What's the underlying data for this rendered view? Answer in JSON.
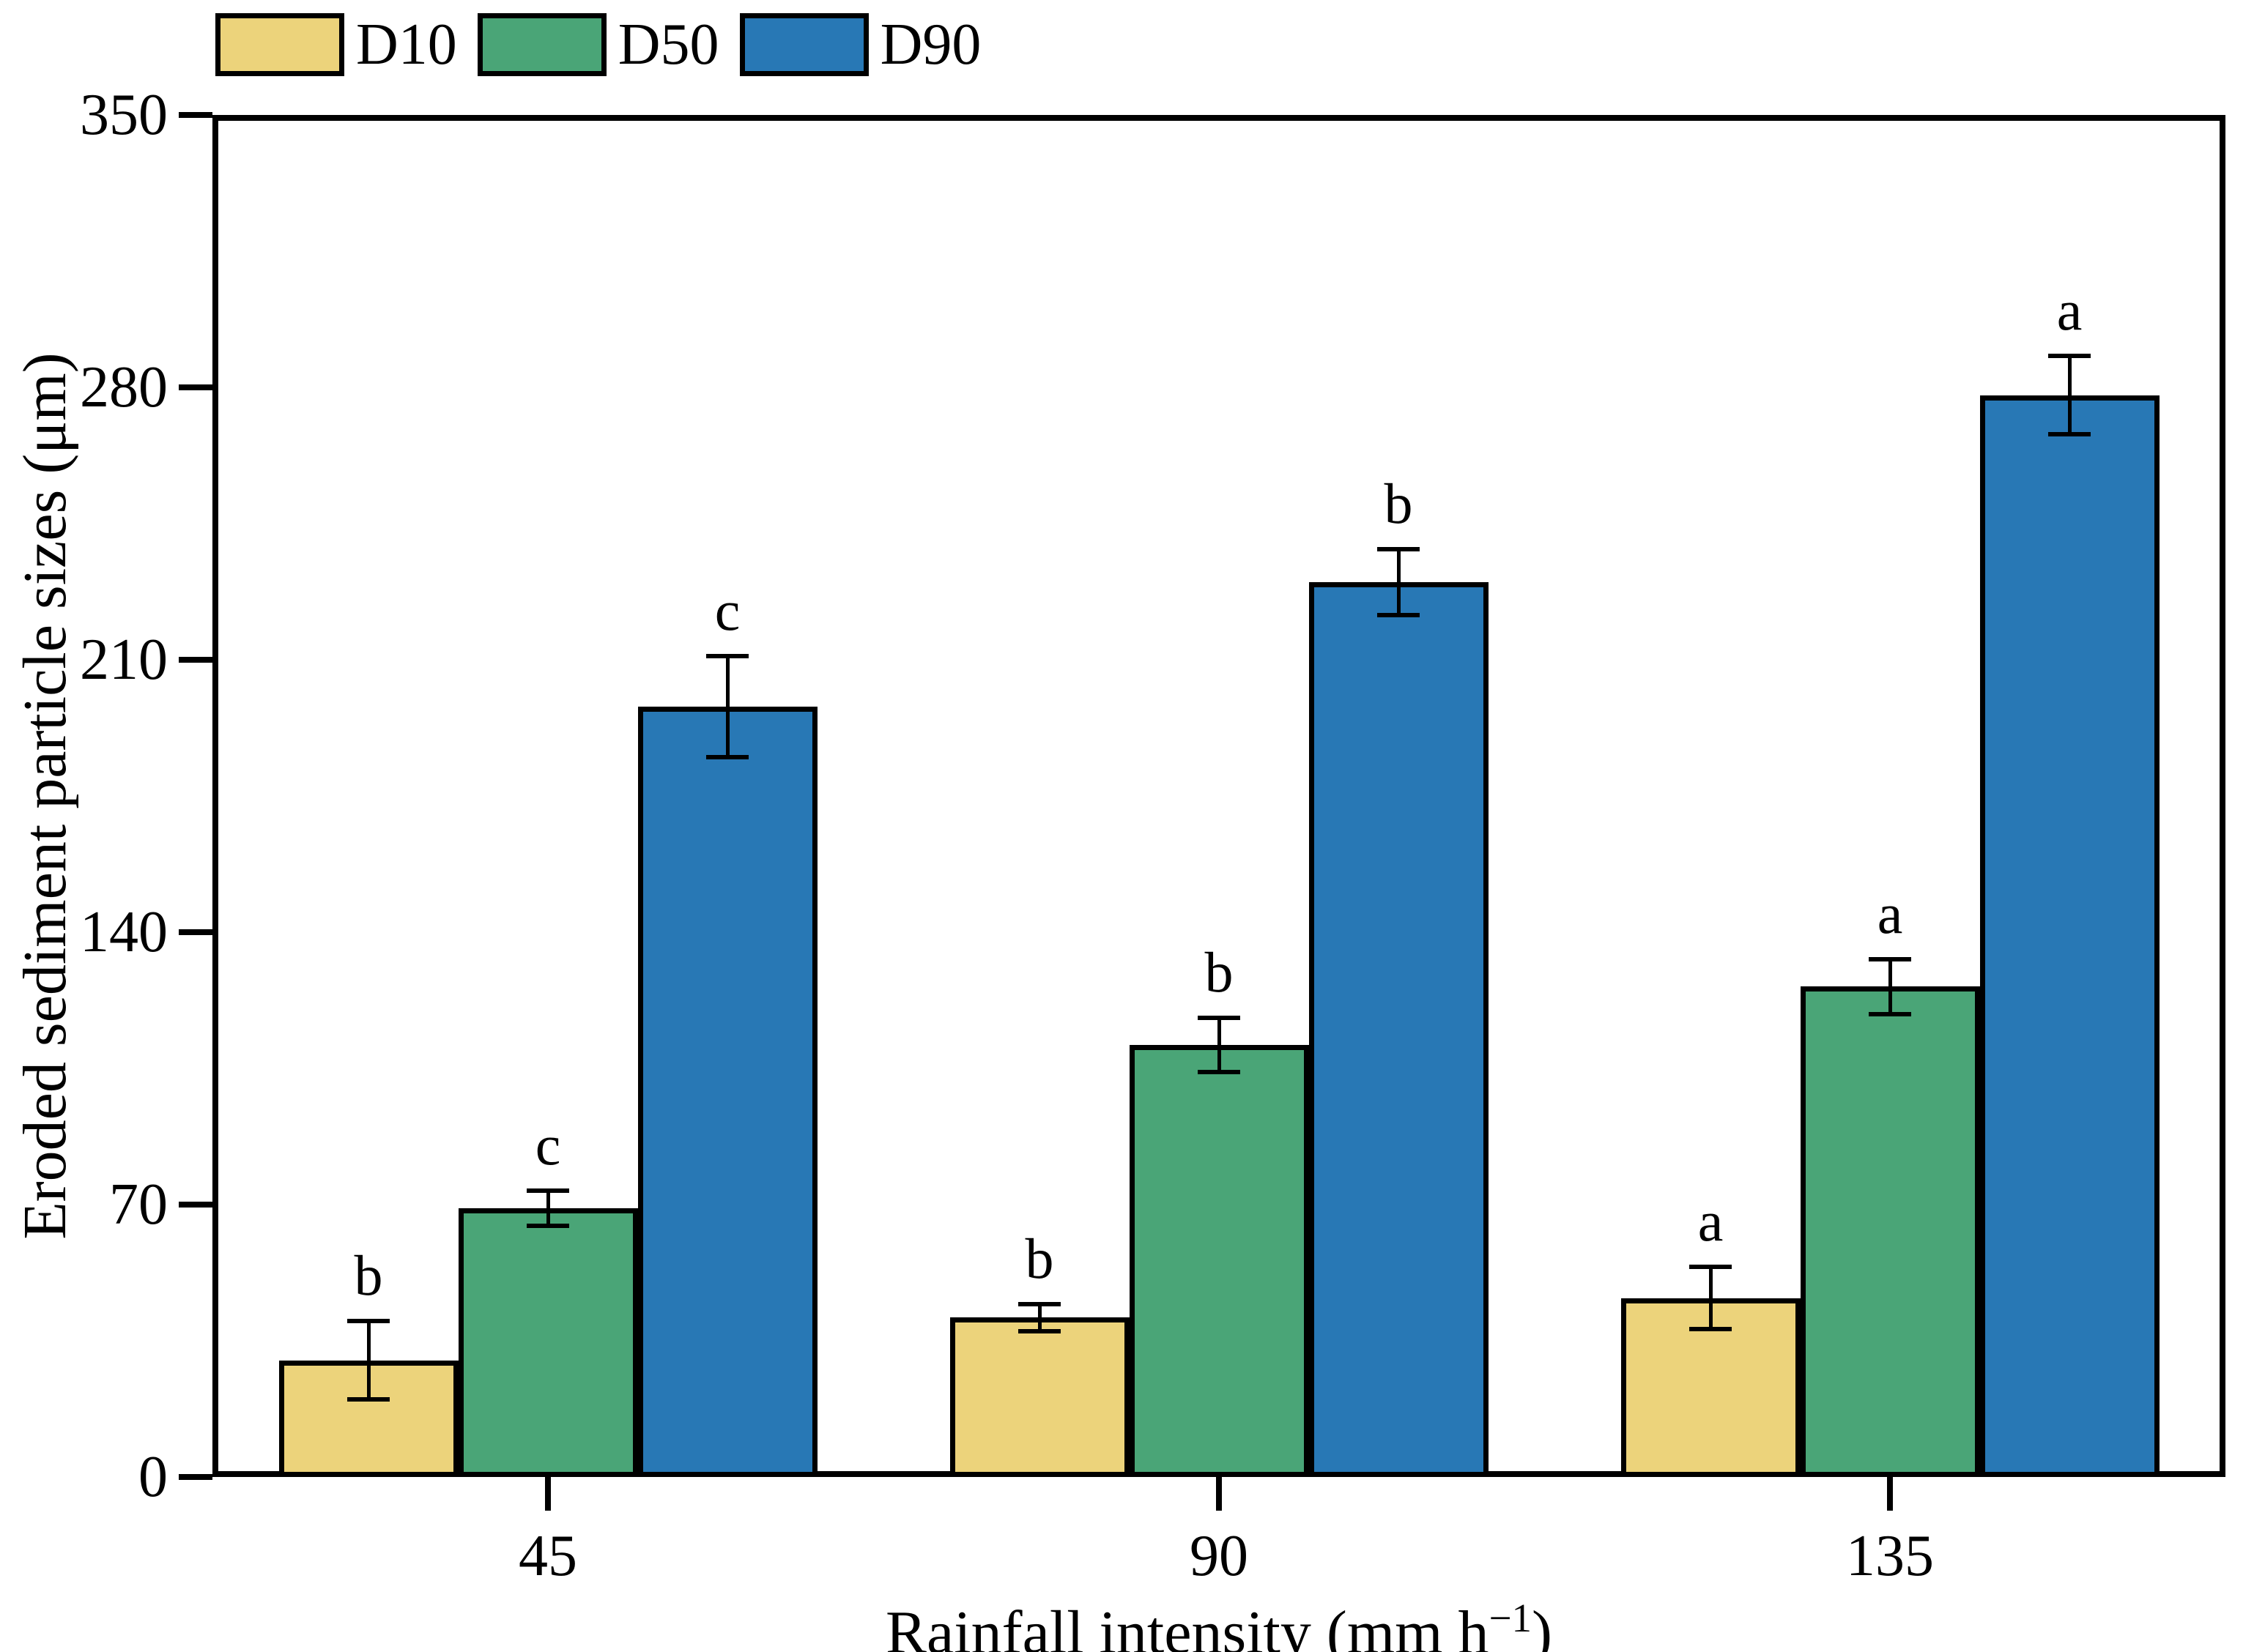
{
  "chart_data": {
    "type": "bar",
    "title": "",
    "categories": [
      "45",
      "90",
      "135"
    ],
    "series": [
      {
        "name": "D10",
        "color": "#ecd37b",
        "values": [
          30,
          41,
          46
        ],
        "errors": [
          10,
          3.5,
          8
        ],
        "letters": [
          "b",
          "b",
          "a"
        ]
      },
      {
        "name": "D50",
        "color": "#4aa577",
        "values": [
          69,
          111,
          126
        ],
        "errors": [
          4.5,
          7,
          7
        ],
        "letters": [
          "c",
          "b",
          "a"
        ]
      },
      {
        "name": "D90",
        "color": "#2878b5",
        "values": [
          198,
          230,
          278
        ],
        "errors": [
          13,
          8.5,
          10
        ],
        "letters": [
          "c",
          "b",
          "a"
        ]
      }
    ],
    "xlabel": "Rainfall intensity (mm h⁻¹)",
    "ylabel": "Eroded sediment particle sizes (μm)",
    "yticks": [
      0,
      70,
      140,
      210,
      280,
      350
    ],
    "ylim": [
      0,
      350
    ],
    "grid": false,
    "legend_position": "top-left-outside",
    "bar_edge_color": "#000000",
    "error_bar_color": "#000000"
  },
  "axes": {
    "y_label": "Eroded sediment particle sizes (μm)",
    "x_label_prefix": "Rainfall intensity (mm h",
    "x_label_superscript": "−1",
    "x_label_suffix": ")"
  },
  "legend": {
    "items": [
      {
        "label": "D10"
      },
      {
        "label": "D50"
      },
      {
        "label": "D90"
      }
    ]
  }
}
